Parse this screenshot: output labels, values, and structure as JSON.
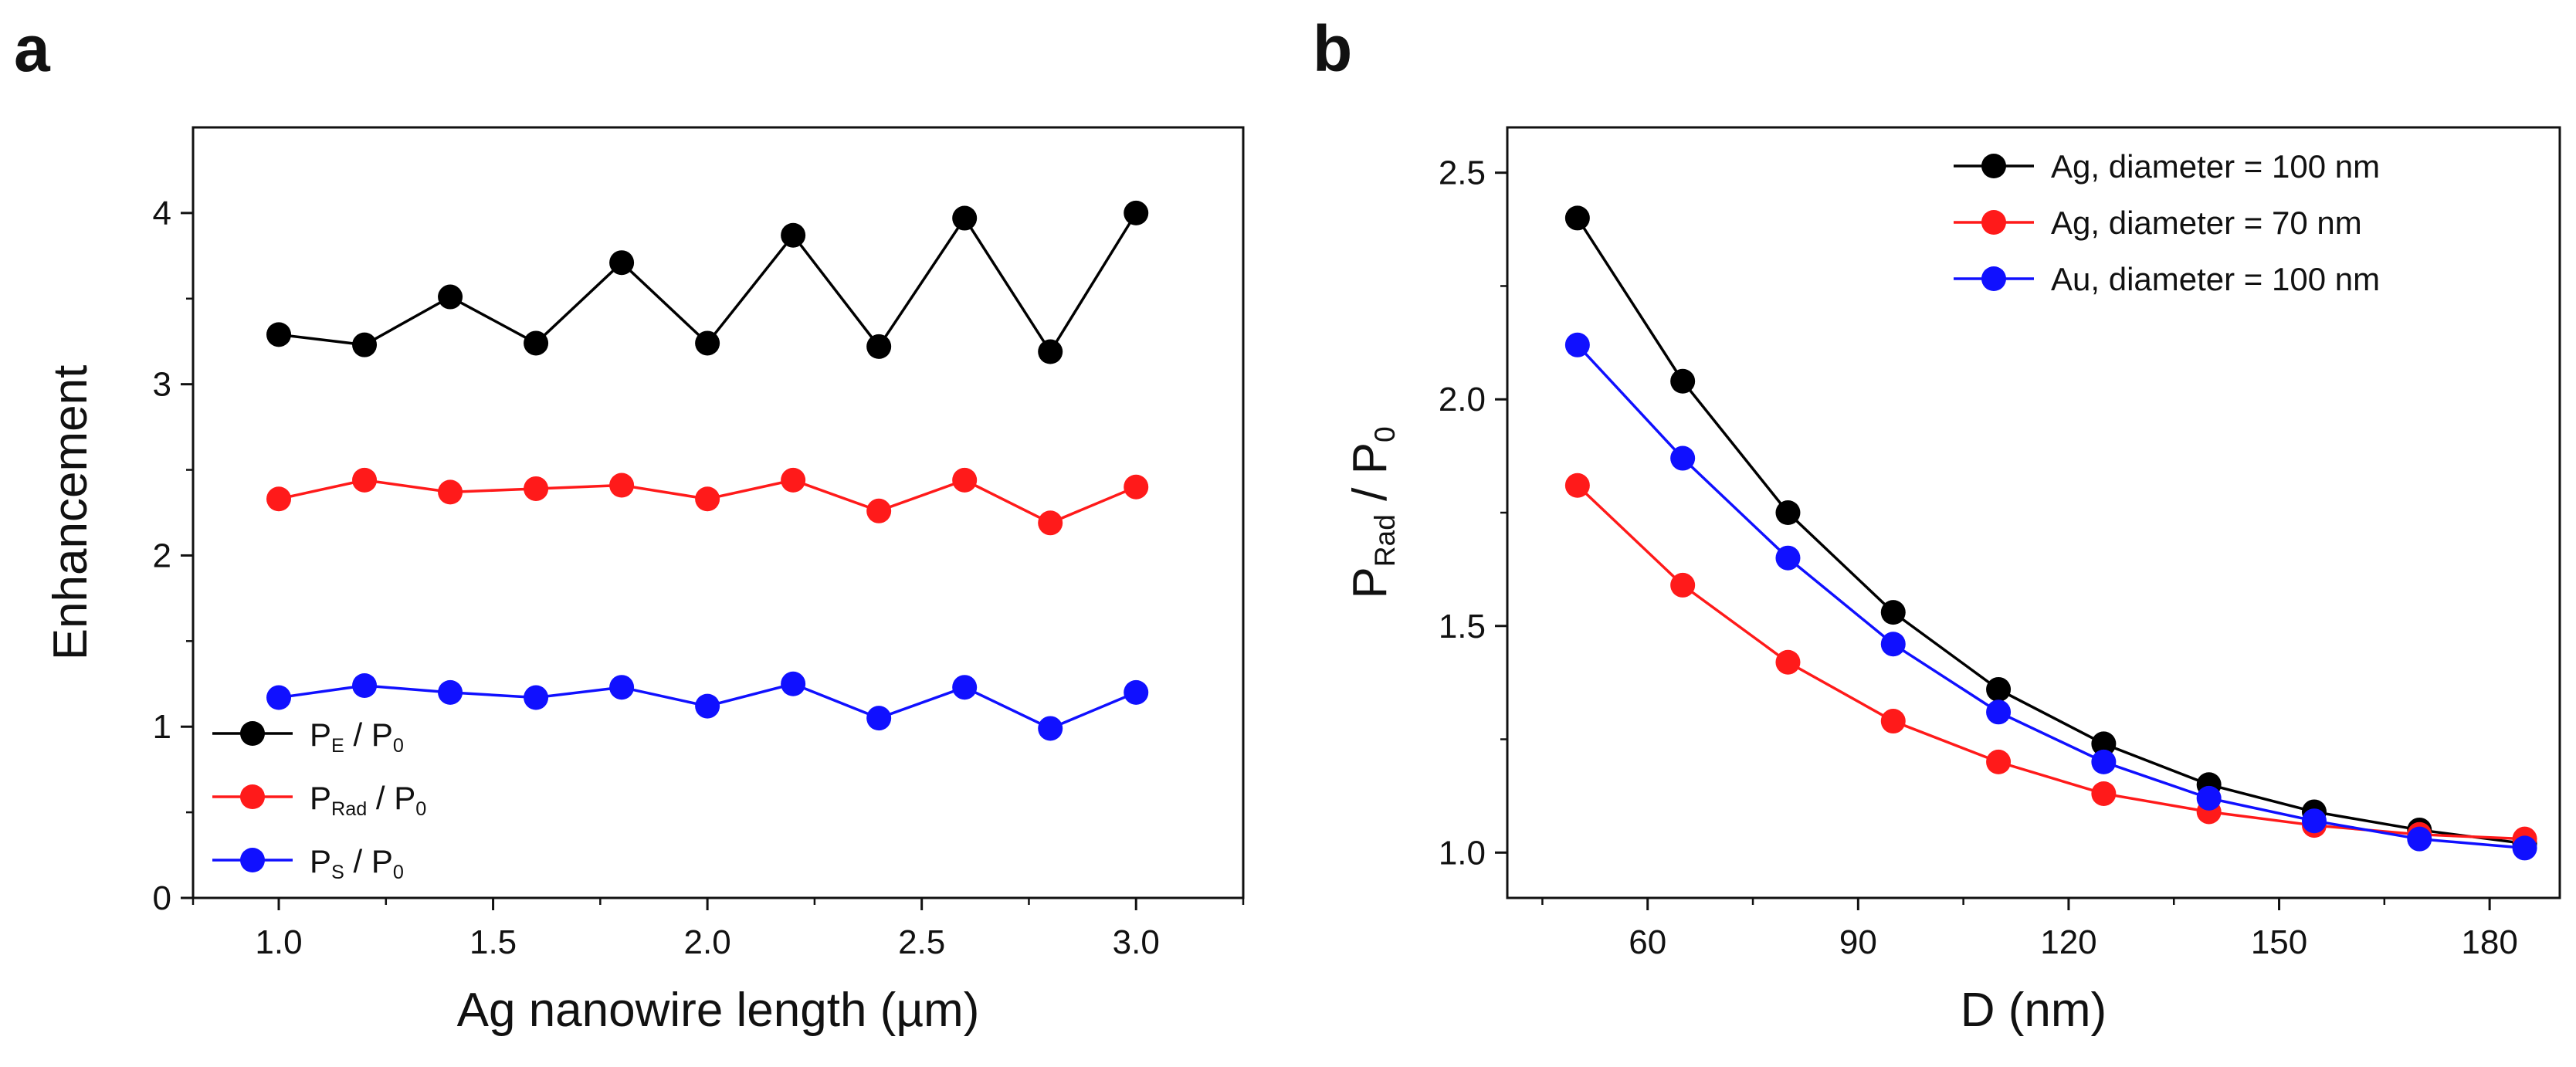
{
  "colors": {
    "black": "#000000",
    "red": "#ff1a1a",
    "blue": "#1010ff"
  },
  "chart_data": [
    {
      "panel": "a",
      "type": "line",
      "xlabel": "Ag nanowire length (µm)",
      "ylabel": "Enhancement",
      "xlim": [
        0.8,
        3.25
      ],
      "ylim": [
        0,
        4.5
      ],
      "xticks": [
        "1.0",
        "1.5",
        "2.0",
        "2.5",
        "3.0"
      ],
      "yticks": [
        "0",
        "1",
        "2",
        "3",
        "4"
      ],
      "legend_position": "lower-left",
      "x": [
        1.0,
        1.2,
        1.4,
        1.6,
        1.8,
        2.0,
        2.2,
        2.4,
        2.6,
        2.8,
        3.0
      ],
      "series": [
        {
          "name": "P_E / P_0",
          "label_main": "P",
          "label_sub": "E",
          "label_tail": " / P",
          "label_tail_sub": "0",
          "color": "#000000",
          "values": [
            3.29,
            3.23,
            3.51,
            3.24,
            3.71,
            3.24,
            3.87,
            3.22,
            3.97,
            3.19,
            4.0
          ]
        },
        {
          "name": "P_Rad / P_0",
          "label_main": "P",
          "label_sub": "Rad",
          "label_tail": " / P",
          "label_tail_sub": "0",
          "color": "#ff1a1a",
          "values": [
            2.33,
            2.44,
            2.37,
            2.39,
            2.41,
            2.33,
            2.44,
            2.26,
            2.44,
            2.19,
            2.4
          ]
        },
        {
          "name": "P_S / P_0",
          "label_main": "P",
          "label_sub": "S",
          "label_tail": " / P",
          "label_tail_sub": "0",
          "color": "#1010ff",
          "values": [
            1.17,
            1.24,
            1.2,
            1.17,
            1.23,
            1.12,
            1.25,
            1.05,
            1.23,
            0.99,
            1.2
          ]
        }
      ]
    },
    {
      "panel": "b",
      "type": "line",
      "xlabel": "D (nm)",
      "ylabel": "P_Rad / P_0",
      "ylabel_main": "P",
      "ylabel_sub": "Rad",
      "ylabel_tail": " / P",
      "ylabel_tail_sub": "0",
      "xlim": [
        40,
        190
      ],
      "ylim": [
        0.9,
        2.6
      ],
      "xticks": [
        "60",
        "90",
        "120",
        "150",
        "180"
      ],
      "yticks": [
        "1.0",
        "1.5",
        "2.0",
        "2.5"
      ],
      "legend_position": "top-right",
      "x": [
        50,
        65,
        80,
        95,
        110,
        125,
        140,
        155,
        170,
        185
      ],
      "series": [
        {
          "name": "Ag, diameter = 100 nm",
          "color": "#000000",
          "values": [
            2.4,
            2.04,
            1.75,
            1.53,
            1.36,
            1.24,
            1.15,
            1.09,
            1.05,
            1.02
          ]
        },
        {
          "name": "Ag, diameter =   70 nm",
          "color": "#ff1a1a",
          "values": [
            1.81,
            1.59,
            1.42,
            1.29,
            1.2,
            1.13,
            1.09,
            1.06,
            1.04,
            1.03
          ]
        },
        {
          "name": "Au, diameter = 100 nm",
          "color": "#1010ff",
          "values": [
            2.12,
            1.87,
            1.65,
            1.46,
            1.31,
            1.2,
            1.12,
            1.07,
            1.03,
            1.01
          ]
        }
      ]
    }
  ]
}
